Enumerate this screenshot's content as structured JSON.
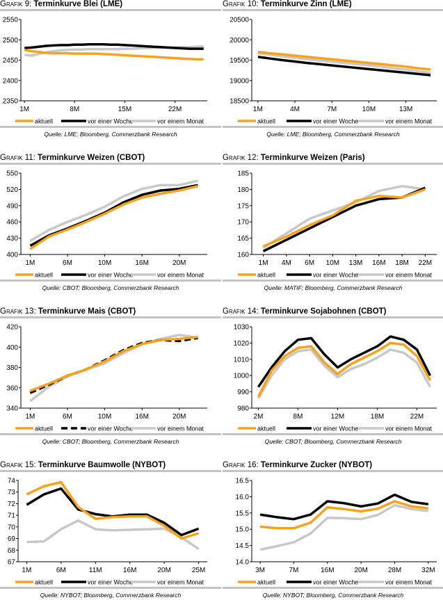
{
  "colors": {
    "aktuell": "#f7a21b",
    "vor_einer_woche": "#000000",
    "vor_einem_monat": "#c8c8c8"
  },
  "chart_data": [
    {
      "type": "line",
      "label": "Grafik 9:",
      "title": "Terminkurve Blei (LME)",
      "source": "Quelle: LME; Bloomberg, Commerzbank Research",
      "ylim": [
        2350,
        2550
      ],
      "yticks": [
        "2350",
        "2400",
        "2450",
        "2500",
        "2550"
      ],
      "xticks": [
        {
          "i": 0,
          "label": "1M"
        },
        {
          "i": 7,
          "label": "8M"
        },
        {
          "i": 14,
          "label": "15M"
        },
        {
          "i": 21,
          "label": "22M"
        }
      ],
      "series": [
        {
          "name": "aktuell",
          "values": [
            2475,
            2472,
            2470,
            2468,
            2467,
            2467,
            2467,
            2466,
            2466,
            2466,
            2466,
            2465,
            2464,
            2463,
            2462,
            2461,
            2460,
            2459,
            2458,
            2457,
            2456,
            2455,
            2454,
            2453,
            2452,
            2452
          ]
        },
        {
          "name": "vor einer Woche",
          "values": [
            2480,
            2481,
            2483,
            2485,
            2486,
            2487,
            2487,
            2488,
            2488,
            2489,
            2489,
            2489,
            2488,
            2488,
            2487,
            2486,
            2485,
            2484,
            2483,
            2482,
            2481,
            2480,
            2479,
            2478,
            2478,
            2478
          ]
        },
        {
          "name": "vor einem Monat",
          "values": [
            2463,
            2461,
            2465,
            2469,
            2472,
            2474,
            2475,
            2476,
            2476,
            2477,
            2477,
            2477,
            2477,
            2477,
            2478,
            2478,
            2479,
            2480,
            2480,
            2481,
            2481,
            2481,
            2482,
            2482,
            2483,
            2484
          ]
        }
      ]
    },
    {
      "type": "line",
      "label": "Grafik 10:",
      "title": "Terminkurve Zinn (LME)",
      "source": "Quelle: LME; Bloomberg, Commerzbank Research",
      "ylim": [
        18500,
        20500
      ],
      "yticks": [
        "18500",
        "19000",
        "19500",
        "20000",
        "20500"
      ],
      "xticks": [
        {
          "i": 0,
          "label": "1M"
        },
        {
          "i": 3,
          "label": "4M"
        },
        {
          "i": 6,
          "label": "7M"
        },
        {
          "i": 9,
          "label": "10M"
        },
        {
          "i": 12,
          "label": "13M"
        }
      ],
      "series": [
        {
          "name": "aktuell",
          "values": [
            19700,
            19670,
            19640,
            19610,
            19580,
            19550,
            19520,
            19490,
            19460,
            19430,
            19400,
            19370,
            19340,
            19300,
            19270
          ]
        },
        {
          "name": "vor einer Woche",
          "values": [
            19580,
            19540,
            19500,
            19465,
            19430,
            19400,
            19370,
            19340,
            19310,
            19280,
            19250,
            19220,
            19190,
            19160,
            19130
          ]
        },
        {
          "name": "vor einem Monat",
          "values": [
            19670,
            19630,
            19590,
            19555,
            19520,
            19490,
            19460,
            19430,
            19400,
            19370,
            19340,
            19300,
            19270,
            19230,
            19190
          ]
        }
      ]
    },
    {
      "type": "line",
      "label": "Grafik 11:",
      "title": "Terminkurve Weizen (CBOT)",
      "source": "Quelle: CBOT; Bloomberg, Commerzbank Research",
      "ylim": [
        400,
        550
      ],
      "yticks": [
        "400",
        "430",
        "460",
        "490",
        "520",
        "550"
      ],
      "xticks": [
        {
          "i": 0,
          "label": "1M"
        },
        {
          "i": 2,
          "label": "6M"
        },
        {
          "i": 4,
          "label": "10M"
        },
        {
          "i": 6,
          "label": "16M"
        },
        {
          "i": 8,
          "label": "20M"
        }
      ],
      "series": [
        {
          "name": "aktuell",
          "values": [
            410,
            433,
            446,
            460,
            475,
            492,
            505,
            512,
            518,
            526
          ]
        },
        {
          "name": "vor einer Woche",
          "values": [
            416,
            435,
            448,
            462,
            477,
            496,
            510,
            518,
            521,
            528
          ]
        },
        {
          "name": "vor einem Monat",
          "values": [
            425,
            445,
            460,
            473,
            488,
            507,
            521,
            528,
            528,
            536
          ]
        }
      ]
    },
    {
      "type": "line",
      "label": "Grafik 12:",
      "title": "Terminkurve Weizen (Paris)",
      "source": "Quelle: MATIF; Bloomberg, Commerzbank Research",
      "ylim": [
        160,
        185
      ],
      "yticks": [
        "160",
        "165",
        "170",
        "175",
        "180",
        "185"
      ],
      "xticks": [
        {
          "i": 0,
          "label": "1M"
        },
        {
          "i": 1,
          "label": "4M"
        },
        {
          "i": 2,
          "label": "6M"
        },
        {
          "i": 3,
          "label": "10M"
        },
        {
          "i": 4,
          "label": "13M"
        },
        {
          "i": 5,
          "label": "16M"
        },
        {
          "i": 6,
          "label": "18M"
        },
        {
          "i": 7,
          "label": "22M"
        }
      ],
      "series": [
        {
          "name": "aktuell",
          "values": [
            162.5,
            165.5,
            169,
            172,
            176.5,
            178,
            177.5,
            180
          ]
        },
        {
          "name": "vor einer Woche",
          "values": [
            161,
            164.5,
            168,
            171.5,
            175,
            177,
            177.5,
            180.5
          ]
        },
        {
          "name": "vor einem Monat",
          "values": [
            162,
            166.5,
            171,
            173.5,
            176,
            179.5,
            181,
            180
          ]
        }
      ]
    },
    {
      "type": "line",
      "label": "Grafik 13:",
      "title": "Terminkurve Mais (CBOT)",
      "source": "Quelle: CBOT; Bloomberg, Commerzbank Research",
      "ylim": [
        340,
        420
      ],
      "yticks": [
        "340",
        "360",
        "380",
        "400",
        "420"
      ],
      "xticks": [
        {
          "i": 0,
          "label": "1M"
        },
        {
          "i": 2,
          "label": "6M"
        },
        {
          "i": 4,
          "label": "10M"
        },
        {
          "i": 6,
          "label": "16M"
        },
        {
          "i": 8,
          "label": "20M"
        }
      ],
      "series": [
        {
          "name": "aktuell",
          "values": [
            357,
            364,
            372,
            378,
            386,
            396,
            403,
            407,
            408,
            410
          ]
        },
        {
          "name": "vor einer Woche",
          "dashed": true,
          "values": [
            355,
            363,
            372,
            378,
            387,
            397,
            404,
            407,
            406,
            409
          ]
        },
        {
          "name": "vor einem Monat",
          "values": [
            347,
            361,
            371,
            378,
            384,
            394,
            403,
            408,
            412,
            409
          ]
        }
      ]
    },
    {
      "type": "line",
      "label": "Grafik 14:",
      "title": "Terminkurve Sojabohnen (CBOT)",
      "source": "Quelle: CBOT; Bloomberg, Commerzbank Research",
      "ylim": [
        980,
        1030
      ],
      "yticks": [
        "980",
        "990",
        "1000",
        "1010",
        "1020",
        "1030"
      ],
      "xticks": [
        {
          "i": 0,
          "label": "2M"
        },
        {
          "i": 3,
          "label": "8M"
        },
        {
          "i": 6,
          "label": "12M"
        },
        {
          "i": 9,
          "label": "18M"
        },
        {
          "i": 12,
          "label": "22M"
        }
      ],
      "series": [
        {
          "name": "aktuell",
          "values": [
            987,
            1003,
            1012,
            1017,
            1018,
            1008,
            1001,
            1007,
            1011,
            1015,
            1020,
            1019,
            1012,
            997
          ]
        },
        {
          "name": "vor einer Woche",
          "values": [
            993,
            1005,
            1015,
            1022,
            1023,
            1013,
            1005,
            1010,
            1014,
            1018,
            1024,
            1022,
            1016,
            1000
          ]
        },
        {
          "name": "vor einem Monat",
          "values": [
            986,
            1000,
            1010,
            1015,
            1016,
            1006,
            999,
            1004,
            1007,
            1011,
            1016,
            1014,
            1008,
            993
          ]
        }
      ]
    },
    {
      "type": "line",
      "label": "Grafik 15:",
      "title": "Terminkurve Baumwolle (NYBOT)",
      "source": "Quelle: NYBOT; Bloomberg, Commerzbank Research",
      "ylim": [
        67,
        74
      ],
      "yticks": [
        "67",
        "68",
        "69",
        "70",
        "71",
        "72",
        "73",
        "74"
      ],
      "xticks": [
        {
          "i": 0,
          "label": "1M"
        },
        {
          "i": 2,
          "label": "6M"
        },
        {
          "i": 4,
          "label": "11M"
        },
        {
          "i": 6,
          "label": "16M"
        },
        {
          "i": 8,
          "label": "20M"
        },
        {
          "i": 10,
          "label": "25M"
        }
      ],
      "series": [
        {
          "name": "aktuell",
          "values": [
            72.8,
            73.5,
            73.85,
            71.7,
            70.7,
            70.85,
            70.9,
            70.9,
            70.1,
            69.0,
            69.45
          ]
        },
        {
          "name": "vor einer Woche",
          "values": [
            71.9,
            72.8,
            73.3,
            71.5,
            71.1,
            70.9,
            71.05,
            71.05,
            70.35,
            69.3,
            69.85
          ]
        },
        {
          "name": "vor einem Monat",
          "values": [
            68.7,
            68.75,
            69.8,
            70.55,
            69.8,
            69.7,
            69.75,
            69.8,
            69.85,
            69.1,
            68.1
          ]
        }
      ]
    },
    {
      "type": "line",
      "label": "Grafik 16:",
      "title": "Terminkurve Zucker (NYBOT)",
      "source": "Quelle: NYBOT; Bloomberg, Commerzbank Research",
      "ylim": [
        14.0,
        16.5
      ],
      "yticks": [
        "14.0",
        "14.5",
        "15.0",
        "15.5",
        "16.0",
        "16.5"
      ],
      "xticks": [
        {
          "i": 0,
          "label": "3M"
        },
        {
          "i": 2,
          "label": "7M"
        },
        {
          "i": 4,
          "label": "16M"
        },
        {
          "i": 6,
          "label": "20M"
        },
        {
          "i": 8,
          "label": "28M"
        },
        {
          "i": 10,
          "label": "32M"
        }
      ],
      "series": [
        {
          "name": "aktuell",
          "values": [
            15.08,
            15.03,
            15.03,
            15.2,
            15.67,
            15.62,
            15.55,
            15.63,
            15.86,
            15.7,
            15.64
          ]
        },
        {
          "name": "vor einer Woche",
          "values": [
            15.45,
            15.37,
            15.31,
            15.45,
            15.86,
            15.8,
            15.7,
            15.79,
            16.06,
            15.84,
            15.77
          ]
        },
        {
          "name": "vor einem Monat",
          "values": [
            14.37,
            14.48,
            14.6,
            14.87,
            15.35,
            15.34,
            15.31,
            15.44,
            15.74,
            15.62,
            15.56
          ]
        }
      ]
    }
  ]
}
